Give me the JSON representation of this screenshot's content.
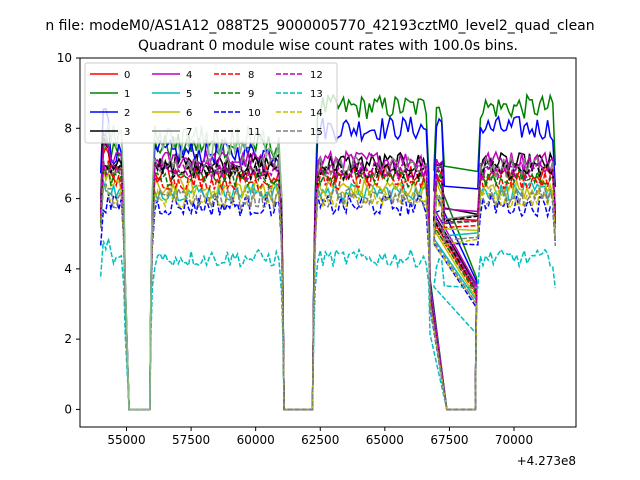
{
  "chart_data": {
    "type": "line",
    "suptitle": "n file: modeM0/AS1A12_088T25_9000005770_42193cztM0_level2_quad_clean",
    "title": "Quadrant 0 module wise count rates with 100.0s bins.",
    "xlabel": "",
    "ylabel": "",
    "x_offset_label": "+4.273e8",
    "xlim": [
      53200,
      72400
    ],
    "ylim": [
      -0.5,
      10
    ],
    "x_ticks": [
      55000,
      57500,
      60000,
      62500,
      65000,
      67500,
      70000
    ],
    "x_tick_labels": [
      "55000",
      "57500",
      "60000",
      "62500",
      "65000",
      "67500",
      "70000"
    ],
    "y_ticks": [
      0,
      2,
      4,
      6,
      8,
      10
    ],
    "y_tick_labels": [
      "0",
      "2",
      "4",
      "6",
      "8",
      "10"
    ],
    "grid": false,
    "legend_position": "top-left",
    "legend_columns": 4,
    "series": [
      {
        "name": "0",
        "color": "#ff0000",
        "style": "solid",
        "level": 6.7,
        "noise": 0.25,
        "first": 7.2
      },
      {
        "name": "1",
        "color": "#008000",
        "style": "solid",
        "level": 7.5,
        "noise": 0.35,
        "level_late": 8.6,
        "first": 7.6
      },
      {
        "name": "2",
        "color": "#0000ff",
        "style": "solid",
        "level": 7.3,
        "noise": 0.35,
        "level_late": 8.0,
        "first": 8.4
      },
      {
        "name": "3",
        "color": "#000000",
        "style": "solid",
        "level": 7.0,
        "noise": 0.3,
        "first": 7.6
      },
      {
        "name": "4",
        "color": "#bf00bf",
        "style": "solid",
        "level": 7.1,
        "noise": 0.25,
        "first": 7.4
      },
      {
        "name": "5",
        "color": "#00bfbf",
        "style": "solid",
        "level": 6.2,
        "noise": 0.25,
        "first": 6.4
      },
      {
        "name": "6",
        "color": "#bfbf00",
        "style": "solid",
        "level": 6.3,
        "noise": 0.25,
        "first": 6.7
      },
      {
        "name": "7",
        "color": "#808080",
        "style": "solid",
        "level": 6.9,
        "noise": 0.3,
        "first": 7.0
      },
      {
        "name": "8",
        "color": "#ff0000",
        "style": "dashed",
        "level": 6.5,
        "noise": 0.25,
        "first": 6.9
      },
      {
        "name": "9",
        "color": "#008000",
        "style": "dashed",
        "level": 6.6,
        "noise": 0.25,
        "first": 6.8
      },
      {
        "name": "10",
        "color": "#0000ff",
        "style": "dashed",
        "level": 5.8,
        "noise": 0.3,
        "first": 5.9
      },
      {
        "name": "11",
        "color": "#000000",
        "style": "dashed",
        "level": 6.8,
        "noise": 0.25,
        "first": 7.0
      },
      {
        "name": "12",
        "color": "#bf00bf",
        "style": "dashed",
        "level": 6.8,
        "noise": 0.25,
        "first": 6.9
      },
      {
        "name": "13",
        "color": "#00bfbf",
        "style": "dashed",
        "level": 4.3,
        "noise": 0.25,
        "first": 4.7
      },
      {
        "name": "14",
        "color": "#bfbf00",
        "style": "dashed",
        "level": 6.0,
        "noise": 0.25,
        "first": 6.3
      },
      {
        "name": "15",
        "color": "#808080",
        "style": "dashed",
        "level": 6.0,
        "noise": 0.3,
        "first": 6.5
      },
      {
        "name": "",
        "color": "#88bb88",
        "style": "solid",
        "level": 7.6,
        "noise": 0.5,
        "first": 8.0,
        "span": [
          54100,
          61000
        ]
      }
    ],
    "segments": [
      {
        "start": 54000,
        "end": 54900
      },
      {
        "start": 56000,
        "end": 61000
      },
      {
        "start": 62300,
        "end": 66700
      },
      {
        "start": 66900,
        "end": 67300
      },
      {
        "start": 68600,
        "end": 71600
      }
    ],
    "zero_intervals": [
      {
        "start": 55100,
        "end": 55900
      },
      {
        "start": 61100,
        "end": 62200
      },
      {
        "start": 67400,
        "end": 68500
      }
    ],
    "bin_seconds": 100
  }
}
